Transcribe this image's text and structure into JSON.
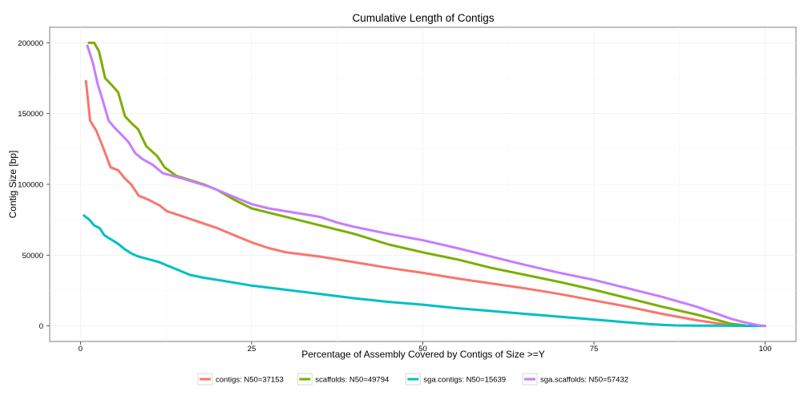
{
  "chart_data": {
    "type": "line",
    "title": "Cumulative Length of Contigs",
    "xlabel": "Percentage of Assembly Covered by Contigs of Size >=Y",
    "ylabel": "Contig Size [bp]",
    "xlim": [
      -4.5,
      104.5
    ],
    "ylim": [
      -11000,
      211000
    ],
    "x_ticks": [
      0,
      25,
      50,
      75,
      100
    ],
    "x_tick_labels": [
      "0",
      "25",
      "50",
      "75",
      "100"
    ],
    "y_ticks": [
      0,
      50000,
      100000,
      150000,
      200000
    ],
    "y_tick_labels": [
      "0",
      "50000",
      "100000",
      "150000",
      "200000"
    ],
    "grid": true,
    "legend_position": "bottom",
    "series": [
      {
        "name": "contigs: N50=37153",
        "color": "#f8766d",
        "x": [
          0.8,
          1.4,
          2.3,
          3.3,
          4.4,
          5.5,
          6.5,
          7.4,
          8.5,
          10.0,
          11.6,
          12.6,
          14.5,
          17.0,
          20.0,
          22.5,
          25.0,
          27.5,
          30.0,
          35.0,
          40.0,
          45.0,
          50.0,
          55.0,
          60.0,
          65.0,
          70.0,
          75.0,
          80.0,
          85.0,
          90.0,
          93.0,
          95.0,
          97.0
        ],
        "y": [
          173000,
          145000,
          138000,
          126000,
          112000,
          110000,
          104000,
          100000,
          92000,
          89000,
          85000,
          81000,
          78000,
          74000,
          69000,
          64000,
          59000,
          55000,
          52000,
          49000,
          45000,
          41000,
          37500,
          33500,
          30000,
          26500,
          22500,
          18000,
          13500,
          8500,
          4000,
          1800,
          600,
          200
        ]
      },
      {
        "name": "scaffolds: N50=49794",
        "color": "#7cae00",
        "x": [
          1.2,
          2.0,
          2.7,
          3.6,
          4.6,
          5.5,
          6.5,
          7.5,
          8.4,
          9.6,
          11.2,
          12.3,
          14.0,
          16.0,
          18.0,
          20.0,
          22.5,
          25.0,
          27.5,
          30.0,
          35.0,
          40.0,
          45.0,
          50.0,
          55.0,
          60.0,
          65.0,
          70.0,
          75.0,
          80.0,
          85.0,
          90.0,
          93.0,
          95.0,
          97.0
        ],
        "y": [
          200000,
          200000,
          194000,
          175000,
          170000,
          165000,
          148000,
          143000,
          139000,
          127000,
          120000,
          112000,
          106000,
          103000,
          100000,
          96000,
          89000,
          83000,
          80000,
          77000,
          71000,
          65000,
          57500,
          52000,
          47000,
          41000,
          36000,
          31000,
          25500,
          19500,
          13500,
          8000,
          4200,
          1500,
          400
        ]
      },
      {
        "name": "sga.contigs: N50=15639",
        "color": "#00bfc4",
        "x": [
          0.5,
          1.3,
          2.0,
          2.8,
          3.5,
          4.5,
          5.5,
          6.5,
          7.5,
          8.5,
          10.0,
          11.5,
          12.5,
          14.0,
          16.0,
          18.0,
          20.0,
          22.5,
          25.0,
          27.5,
          30.0,
          35.0,
          40.0,
          45.0,
          50.0,
          55.0,
          60.0,
          65.0,
          70.0,
          75.0,
          80.0,
          83.0,
          85.0,
          87.0,
          90.0,
          95.0,
          100.0
        ],
        "y": [
          78000,
          75000,
          71000,
          69000,
          64000,
          61000,
          58000,
          54000,
          51000,
          49000,
          47000,
          45000,
          43000,
          40000,
          36000,
          34000,
          32500,
          30500,
          28500,
          27000,
          25500,
          22500,
          19500,
          17000,
          15000,
          12500,
          10500,
          8500,
          6500,
          4500,
          2500,
          1300,
          700,
          300,
          200,
          100,
          0
        ]
      },
      {
        "name": "sga.scaffolds: N50=57432",
        "color": "#c77cff",
        "x": [
          1.0,
          1.8,
          2.5,
          3.2,
          4.1,
          5.0,
          6.0,
          7.0,
          8.0,
          9.0,
          10.5,
          12.0,
          13.5,
          15.0,
          17.0,
          19.0,
          21.0,
          23.0,
          25.0,
          27.5,
          30.0,
          35.0,
          37.5,
          40.0,
          45.0,
          50.0,
          55.0,
          60.0,
          65.0,
          70.0,
          75.0,
          80.0,
          85.0,
          90.0,
          93.0,
          95.0,
          97.0,
          99.0,
          100.0
        ],
        "y": [
          198000,
          186000,
          171000,
          160000,
          145000,
          140000,
          135000,
          130000,
          122000,
          118000,
          114000,
          108000,
          106000,
          104000,
          101000,
          98000,
          94000,
          90000,
          86000,
          83000,
          81000,
          77000,
          73000,
          70000,
          65000,
          60500,
          55000,
          49000,
          43000,
          37500,
          32500,
          26500,
          20500,
          13500,
          8500,
          5000,
          2500,
          500,
          0
        ]
      }
    ]
  }
}
